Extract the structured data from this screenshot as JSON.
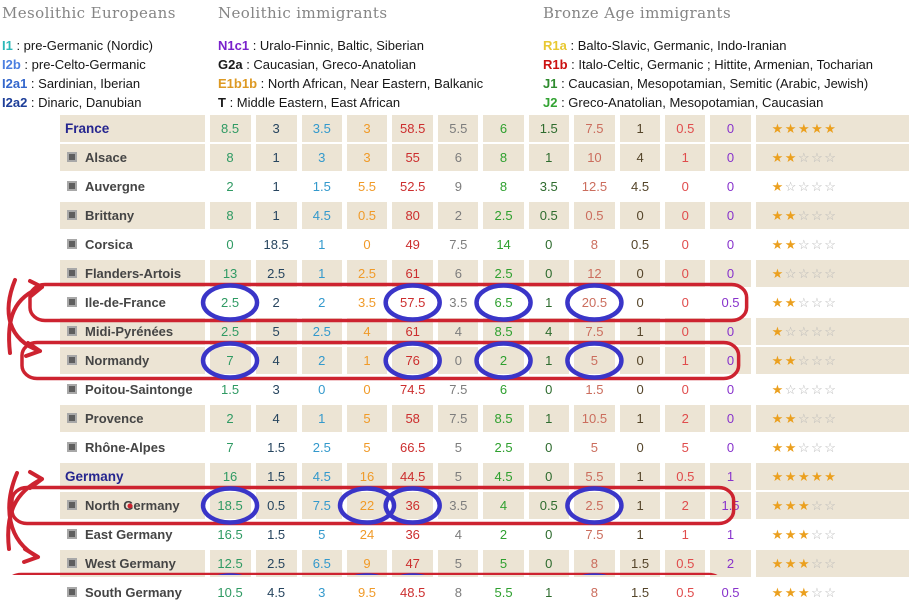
{
  "legend": {
    "separator": " : ",
    "groups": [
      {
        "title": "Mesolithic Europeans",
        "items": [
          {
            "code": "I1",
            "color": "#2cb8b8",
            "desc": "pre-Germanic (Nordic)"
          },
          {
            "code": "I2b",
            "color": "#4b7fe0",
            "desc": "pre-Celto-Germanic"
          },
          {
            "code": "I2a1",
            "color": "#3366cc",
            "desc": "Sardinian, Iberian"
          },
          {
            "code": "I2a2",
            "color": "#1d3e99",
            "desc": "Dinaric, Danubian"
          }
        ]
      },
      {
        "title": "Neolithic immigrants",
        "items": [
          {
            "code": "N1c1",
            "color": "#7a22cc",
            "desc": "Uralo-Finnic, Baltic, Siberian"
          },
          {
            "code": "G2a",
            "color": "#1a1a1a",
            "desc": "Caucasian, Greco-Anatolian"
          },
          {
            "code": "E1b1b",
            "color": "#dd9922",
            "desc": "North African, Near Eastern, Balkanic"
          },
          {
            "code": "T",
            "color": "#1a1a1a",
            "desc": "Middle Eastern, East African"
          }
        ]
      },
      {
        "title": "Bronze Age immigrants",
        "items": [
          {
            "code": "R1a",
            "color": "#e8c832",
            "desc": "Balto-Slavic, Germanic, Indo-Iranian"
          },
          {
            "code": "R1b",
            "color": "#cc1111",
            "desc": "Italo-Celtic, Germanic ; Hittite, Armenian, Tocharian"
          },
          {
            "code": "J1",
            "color": "#2e8b2e",
            "desc": "Caucasian, Mesopotamian, Semitic (Arabic, Jewish)"
          },
          {
            "code": "J2",
            "color": "#33a333",
            "desc": "Greco-Anatolian, Mesopotamian, Caucasian"
          }
        ]
      }
    ]
  },
  "table": {
    "stars_max": 5,
    "row_bg_beige": "#ece4d4",
    "region_label_color": "#26268f",
    "subregion_label_color": "#454545",
    "star_filled_color": "#eba01f",
    "star_empty_color": "#b8b8b8",
    "column_colors": [
      "#2f9a63",
      "#27455f",
      "#3399cc",
      "#f09a28",
      "#cc2e2e",
      "#7d7d7d",
      "#2fa02f",
      "#2e6b2e",
      "#cb6d5d",
      "#55452a",
      "#e04c4c",
      "#8833cc"
    ],
    "rows": [
      {
        "name": "France",
        "is_region": true,
        "bg": "beige",
        "values": [
          8.5,
          3,
          3.5,
          3,
          58.5,
          5.5,
          6,
          1.5,
          7.5,
          1,
          0.5,
          0
        ],
        "stars": 5
      },
      {
        "name": "Alsace",
        "is_region": false,
        "bg": "beige",
        "values": [
          8,
          1,
          3,
          3,
          55,
          6,
          8,
          1,
          10,
          4,
          1,
          0
        ],
        "stars": 2
      },
      {
        "name": "Auvergne",
        "is_region": false,
        "bg": "white",
        "values": [
          2,
          1,
          1.5,
          5.5,
          52.5,
          9,
          8,
          3.5,
          12.5,
          4.5,
          0,
          0
        ],
        "stars": 1
      },
      {
        "name": "Brittany",
        "is_region": false,
        "bg": "beige",
        "values": [
          8,
          1,
          4.5,
          0.5,
          80,
          2,
          2.5,
          0.5,
          0.5,
          0,
          0,
          0
        ],
        "stars": 2
      },
      {
        "name": "Corsica",
        "is_region": false,
        "bg": "white",
        "values": [
          0,
          18.5,
          1,
          0,
          49,
          7.5,
          14,
          0,
          8,
          0.5,
          0,
          0
        ],
        "stars": 2
      },
      {
        "name": "Flanders-Artois",
        "is_region": false,
        "bg": "beige",
        "values": [
          13,
          2.5,
          1,
          2.5,
          61,
          6,
          2.5,
          0,
          12,
          0,
          0,
          0
        ],
        "stars": 1
      },
      {
        "name": "Ile-de-France",
        "is_region": false,
        "bg": "white",
        "values": [
          2.5,
          2,
          2,
          3.5,
          57.5,
          3.5,
          6.5,
          1,
          20.5,
          0,
          0,
          0.5
        ],
        "stars": 2
      },
      {
        "name": "Midi-Pyrénées",
        "is_region": false,
        "bg": "beige",
        "values": [
          2.5,
          5,
          2.5,
          4,
          61,
          4,
          8.5,
          4,
          7.5,
          1,
          0,
          0
        ],
        "stars": 1
      },
      {
        "name": "Normandy",
        "is_region": false,
        "bg": "beige",
        "values": [
          7,
          4,
          2,
          1,
          76,
          0,
          2,
          1,
          5,
          0,
          1,
          0
        ],
        "stars": 2
      },
      {
        "name": "Poitou-Saintonge",
        "is_region": false,
        "bg": "white",
        "values": [
          1.5,
          3,
          0,
          0,
          74.5,
          7.5,
          6,
          0,
          1.5,
          0,
          0,
          0
        ],
        "stars": 1
      },
      {
        "name": "Provence",
        "is_region": false,
        "bg": "beige",
        "values": [
          2,
          4,
          1,
          5,
          58,
          7.5,
          8.5,
          1,
          10.5,
          1,
          2,
          0
        ],
        "stars": 2
      },
      {
        "name": "Rhône-Alpes",
        "is_region": false,
        "bg": "white",
        "values": [
          7,
          1.5,
          2.5,
          5,
          66.5,
          5,
          2.5,
          0,
          5,
          0,
          5,
          0
        ],
        "stars": 2
      },
      {
        "name": "Germany",
        "is_region": true,
        "bg": "beige",
        "values": [
          16,
          1.5,
          4.5,
          16,
          44.5,
          5,
          4.5,
          0,
          5.5,
          1,
          0.5,
          1
        ],
        "stars": 5
      },
      {
        "name": "North Germany",
        "is_region": false,
        "bg": "beige",
        "values": [
          18.5,
          0.5,
          7.5,
          22,
          36,
          3.5,
          4,
          0.5,
          2.5,
          1,
          2,
          1.5
        ],
        "stars": 3
      },
      {
        "name": "East Germany",
        "is_region": false,
        "bg": "white",
        "values": [
          16.5,
          1.5,
          5,
          24,
          36,
          4,
          2,
          0,
          7.5,
          1,
          1,
          1
        ],
        "stars": 3
      },
      {
        "name": "West Germany",
        "is_region": false,
        "bg": "beige",
        "values": [
          12.5,
          2.5,
          6.5,
          9,
          47,
          5,
          5,
          0,
          8,
          1.5,
          0.5,
          2
        ],
        "stars": 3
      },
      {
        "name": "South Germany",
        "is_region": false,
        "bg": "white",
        "values": [
          10.5,
          4.5,
          3,
          9.5,
          48.5,
          8,
          5.5,
          1,
          8,
          1.5,
          0.5,
          0.5
        ],
        "stars": 3
      }
    ]
  },
  "annotations": {
    "red_color": "#cd2330",
    "blue_color": "#3a35c8",
    "boxed_rows": [
      "Ile-de-France",
      "Normandy",
      "North Germany",
      "South Germany"
    ],
    "circled_cells": [
      {
        "row": "Ile-de-France",
        "cols": [
          1,
          5,
          7,
          9
        ]
      },
      {
        "row": "Normandy",
        "cols": [
          1,
          5,
          7,
          9
        ]
      },
      {
        "row": "North Germany",
        "cols": [
          1,
          4,
          5,
          9
        ]
      },
      {
        "row": "South Germany",
        "cols": [
          1,
          4,
          5,
          9
        ]
      }
    ],
    "arrows": [
      {
        "from": "left-margin",
        "to": "Ile-de-France"
      },
      {
        "from": "left-margin",
        "to": "Normandy"
      },
      {
        "from": "left-margin",
        "to": "North Germany"
      },
      {
        "from": "left-margin",
        "to": "South Germany"
      }
    ]
  },
  "chart_data": {
    "type": "table",
    "categories": [
      "France",
      "Alsace",
      "Auvergne",
      "Brittany",
      "Corsica",
      "Flanders-Artois",
      "Ile-de-France",
      "Midi-Pyrénées",
      "Normandy",
      "Poitou-Saintonge",
      "Provence",
      "Rhône-Alpes",
      "Germany",
      "North Germany",
      "East Germany",
      "West Germany",
      "South Germany"
    ],
    "values": [
      [
        8.5,
        3,
        3.5,
        3,
        58.5,
        5.5,
        6,
        1.5,
        7.5,
        1,
        0.5,
        0
      ],
      [
        8,
        1,
        3,
        3,
        55,
        6,
        8,
        1,
        10,
        4,
        1,
        0
      ],
      [
        2,
        1,
        1.5,
        5.5,
        52.5,
        9,
        8,
        3.5,
        12.5,
        4.5,
        0,
        0
      ],
      [
        8,
        1,
        4.5,
        0.5,
        80,
        2,
        2.5,
        0.5,
        0.5,
        0,
        0,
        0
      ],
      [
        0,
        18.5,
        1,
        0,
        49,
        7.5,
        14,
        0,
        8,
        0.5,
        0,
        0
      ],
      [
        13,
        2.5,
        1,
        2.5,
        61,
        6,
        2.5,
        0,
        12,
        0,
        0,
        0
      ],
      [
        2.5,
        2,
        2,
        3.5,
        57.5,
        3.5,
        6.5,
        1,
        20.5,
        0,
        0,
        0.5
      ],
      [
        2.5,
        5,
        2.5,
        4,
        61,
        4,
        8.5,
        4,
        7.5,
        1,
        0,
        0
      ],
      [
        7,
        4,
        2,
        1,
        76,
        0,
        2,
        1,
        5,
        0,
        1,
        0
      ],
      [
        1.5,
        3,
        0,
        0,
        74.5,
        7.5,
        6,
        0,
        1.5,
        0,
        0,
        0
      ],
      [
        2,
        4,
        1,
        5,
        58,
        7.5,
        8.5,
        1,
        10.5,
        1,
        2,
        0
      ],
      [
        7,
        1.5,
        2.5,
        5,
        66.5,
        5,
        2.5,
        0,
        5,
        0,
        5,
        0
      ],
      [
        16,
        1.5,
        4.5,
        16,
        44.5,
        5,
        4.5,
        0,
        5.5,
        1,
        0.5,
        1
      ],
      [
        18.5,
        0.5,
        7.5,
        22,
        36,
        3.5,
        4,
        0.5,
        2.5,
        1,
        2,
        1.5
      ],
      [
        16.5,
        1.5,
        5,
        24,
        36,
        4,
        2,
        0,
        7.5,
        1,
        1,
        1
      ],
      [
        12.5,
        2.5,
        6.5,
        9,
        47,
        5,
        5,
        0,
        8,
        1.5,
        0.5,
        2
      ],
      [
        10.5,
        4.5,
        3,
        9.5,
        48.5,
        8,
        5.5,
        1,
        8,
        1.5,
        0.5,
        0.5
      ]
    ],
    "star_ratings": [
      5,
      2,
      1,
      2,
      2,
      1,
      2,
      1,
      2,
      1,
      2,
      2,
      5,
      3,
      3,
      3,
      3
    ],
    "title": "",
    "legend_position": "top"
  }
}
